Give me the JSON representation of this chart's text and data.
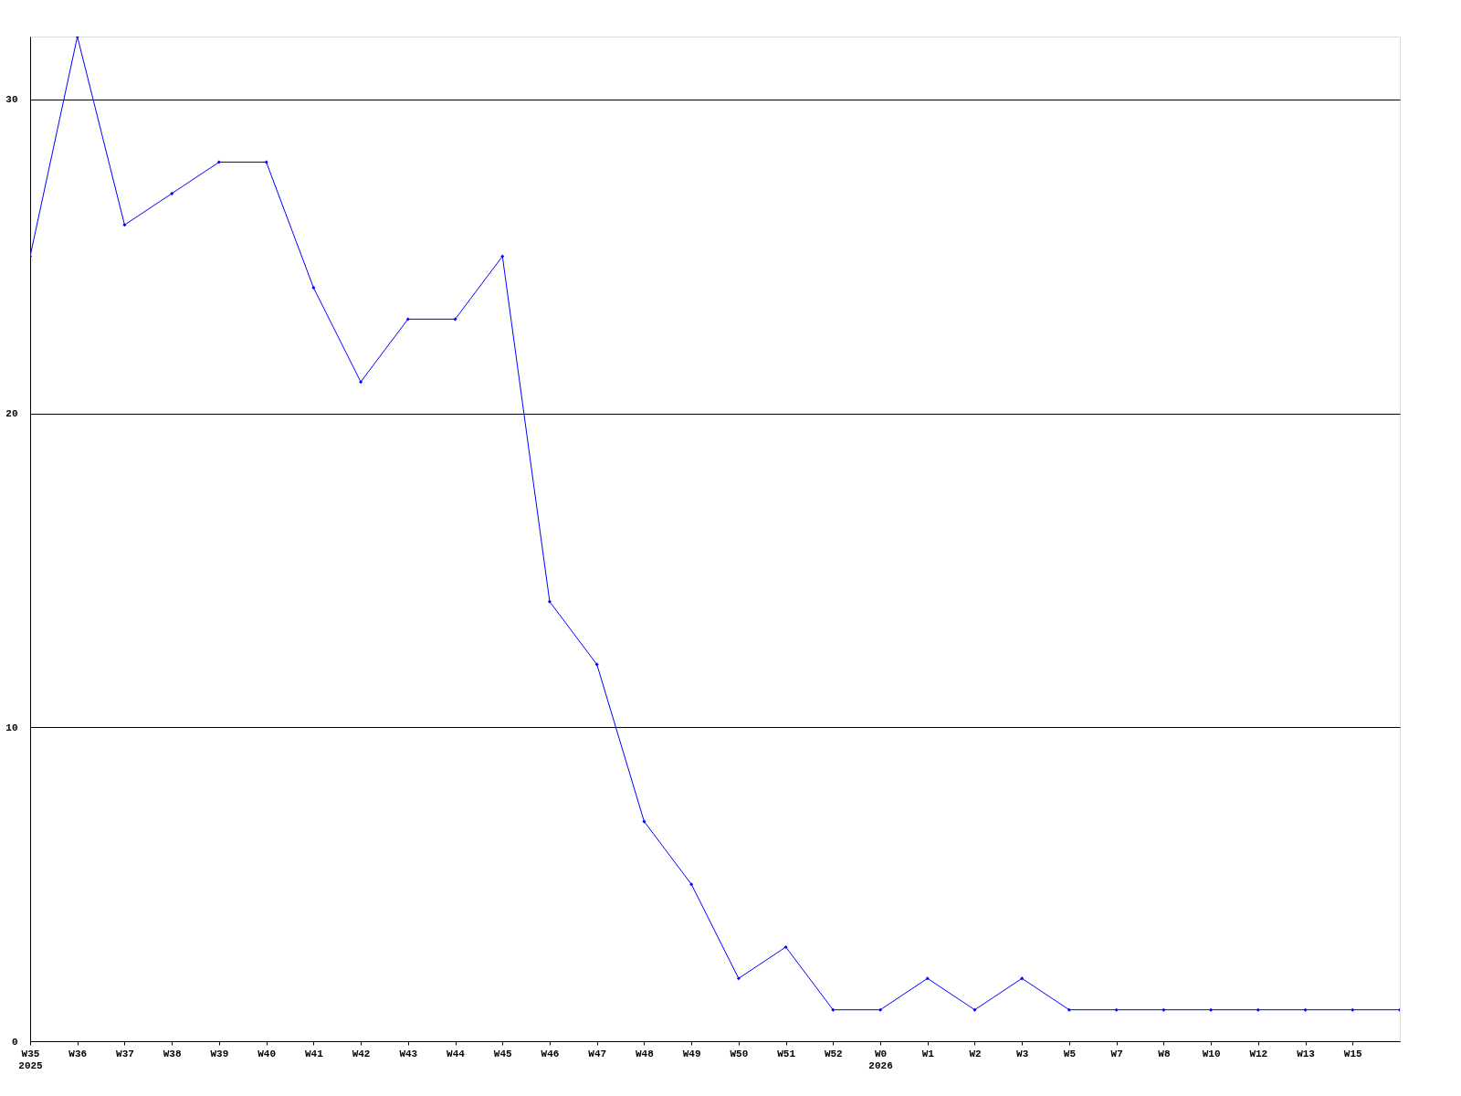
{
  "chart_data": {
    "type": "line",
    "categories": [
      "W35\n2025",
      "W36",
      "W37",
      "W38",
      "W39",
      "W40",
      "W41",
      "W42",
      "W43",
      "W44",
      "W45",
      "W46",
      "W47",
      "W48",
      "W49",
      "W50",
      "W51",
      "W52",
      "W0\n2026",
      "W1",
      "W2",
      "W3",
      "W5",
      "W7",
      "W8",
      "W10",
      "W12",
      "W13",
      "W15",
      null
    ],
    "series": [
      {
        "color": "#0000ff",
        "values": [
          25,
          32,
          26,
          27,
          28,
          28,
          24,
          21,
          23,
          23,
          25,
          14,
          12,
          7,
          5,
          2,
          3,
          1,
          1,
          2,
          1,
          2,
          1,
          1,
          1,
          1,
          1,
          1,
          1,
          1
        ]
      }
    ],
    "ylim": [
      0,
      32
    ],
    "yticks": [
      0,
      10,
      20,
      30
    ],
    "grid": "y",
    "marker": "diamond",
    "line_style": "solid"
  }
}
